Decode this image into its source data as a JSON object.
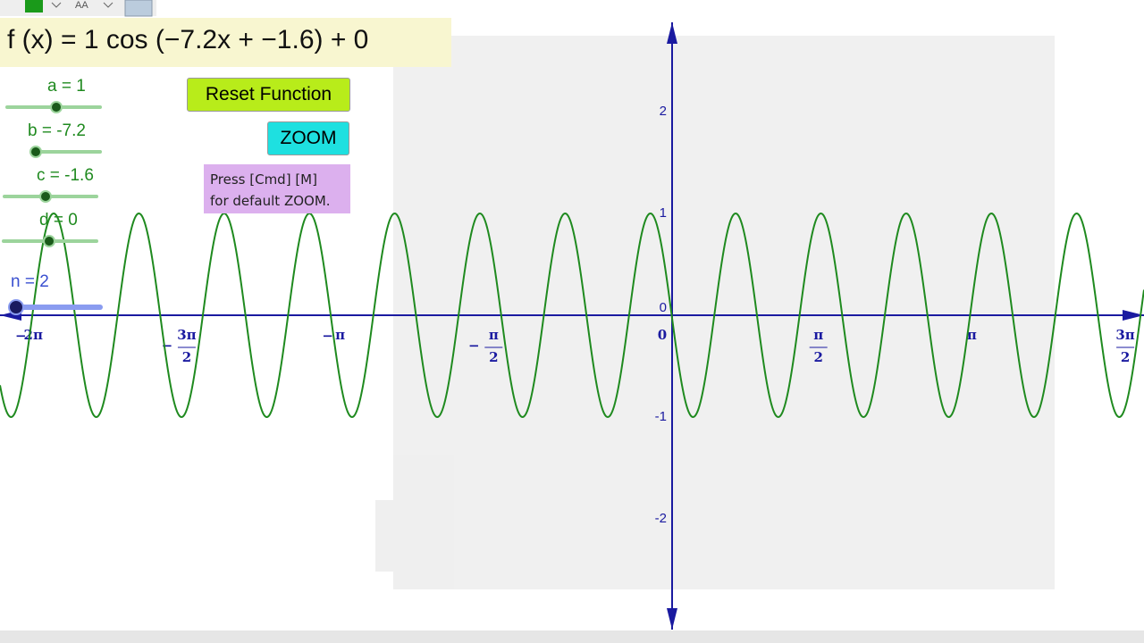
{
  "toolbar": {
    "font_icon": "AA"
  },
  "formula": "f (x) = 1 cos (−7.2x + −1.6) + 0",
  "sliders": [
    {
      "label": "a = 1",
      "value": 1
    },
    {
      "label": "b = -7.2",
      "value": -7.2
    },
    {
      "label": "c = -1.6",
      "value": -1.6
    },
    {
      "label": "d = 0",
      "value": 0
    },
    {
      "label": "n = 2",
      "value": 2
    }
  ],
  "buttons": [
    "Reset Function",
    "ZOOM"
  ],
  "note": [
    "Press [Cmd] [M]",
    "for default ZOOM."
  ],
  "graph": {
    "xticks": [
      {
        "value": -6.2832,
        "sign": "−",
        "numerator": "2π"
      },
      {
        "value": -4.7124,
        "sign": "−",
        "numerator": "3π",
        "denominator": "2"
      },
      {
        "value": -3.1416,
        "sign": "−",
        "numerator": "π"
      },
      {
        "value": -1.5708,
        "sign": "−",
        "numerator": "π",
        "denominator": "2"
      },
      {
        "value": 0,
        "numerator": "0"
      },
      {
        "value": 1.5708,
        "numerator": "π",
        "denominator": "2"
      },
      {
        "value": 3.1416,
        "numerator": "π"
      },
      {
        "value": 4.7124,
        "numerator": "3π",
        "denominator": "2"
      }
    ],
    "yticks": [
      -2,
      -1,
      0,
      1,
      2
    ]
  }
}
